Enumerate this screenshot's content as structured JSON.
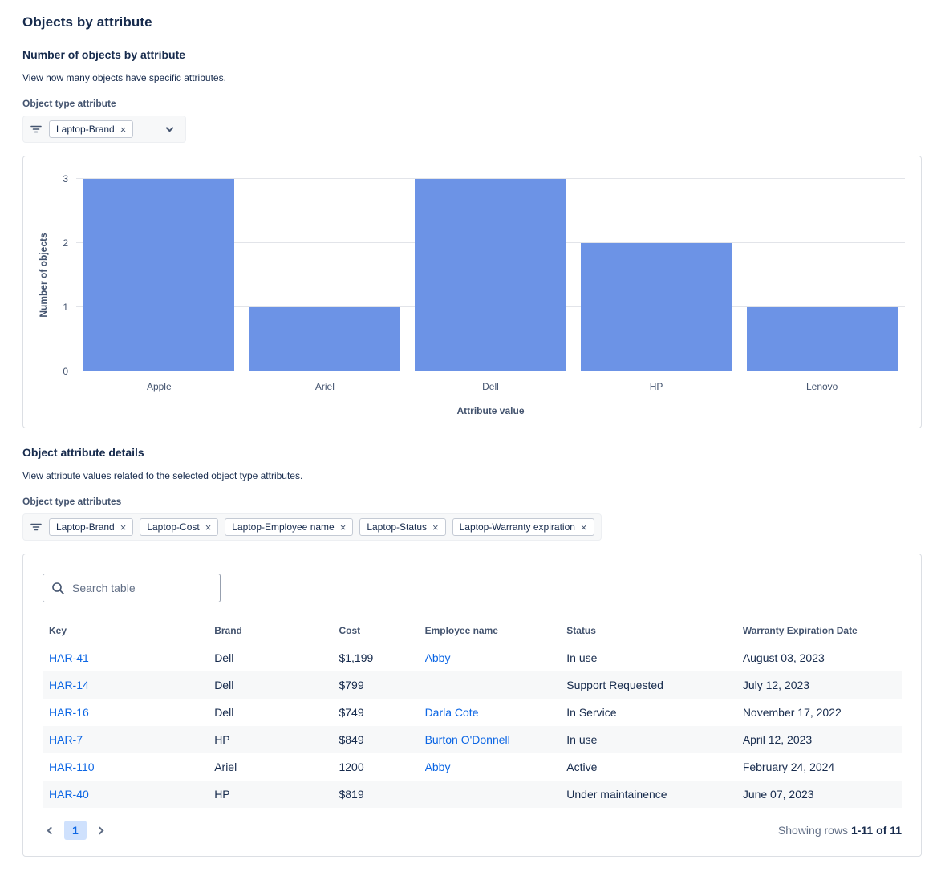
{
  "page": {
    "title": "Objects by attribute"
  },
  "objects_by_attribute": {
    "heading": "Number of objects by attribute",
    "description": "View how many objects have specific attributes.",
    "filter_label": "Object type attribute",
    "filter_tags": [
      "Laptop-Brand"
    ]
  },
  "chart_data": {
    "type": "bar",
    "categories": [
      "Apple",
      "Ariel",
      "Dell",
      "HP",
      "Lenovo"
    ],
    "values": [
      3,
      1,
      3,
      2,
      1
    ],
    "title": "",
    "xlabel": "Attribute value",
    "ylabel": "Number of objects",
    "yticks": [
      0,
      1,
      2,
      3
    ],
    "ylim": [
      0,
      3
    ],
    "grid": true,
    "legend": false,
    "bar_color": "#6C93E6"
  },
  "attribute_details": {
    "heading": "Object attribute details",
    "description": "View attribute values related to the selected object type attributes.",
    "filter_label": "Object type attributes",
    "filter_tags": [
      "Laptop-Brand",
      "Laptop-Cost",
      "Laptop-Employee name",
      "Laptop-Status",
      "Laptop-Warranty expiration"
    ]
  },
  "table": {
    "search_placeholder": "Search table",
    "columns": [
      "Key",
      "Brand",
      "Cost",
      "Employee name",
      "Status",
      "Warranty Expiration Date"
    ],
    "rows": [
      {
        "key": "HAR-41",
        "brand": "Dell",
        "cost": "$1,199",
        "employee_name": "Abby",
        "status": "In use",
        "warranty_expiration_date": "August 03, 2023"
      },
      {
        "key": "HAR-14",
        "brand": "Dell",
        "cost": "$799",
        "employee_name": "",
        "status": "Support Requested",
        "warranty_expiration_date": "July 12, 2023"
      },
      {
        "key": "HAR-16",
        "brand": "Dell",
        "cost": "$749",
        "employee_name": "Darla Cote",
        "status": "In Service",
        "warranty_expiration_date": "November 17, 2022"
      },
      {
        "key": "HAR-7",
        "brand": "HP",
        "cost": "$849",
        "employee_name": "Burton O'Donnell",
        "status": "In use",
        "warranty_expiration_date": "April 12, 2023"
      },
      {
        "key": "HAR-110",
        "brand": "Ariel",
        "cost": "1200",
        "employee_name": "Abby",
        "status": "Active",
        "warranty_expiration_date": "February 24, 2024"
      },
      {
        "key": "HAR-40",
        "brand": "HP",
        "cost": "$819",
        "employee_name": "",
        "status": "Under maintainence",
        "warranty_expiration_date": "June 07, 2023"
      }
    ],
    "pagination": {
      "current_page": "1",
      "summary_label": "Showing rows",
      "summary_range": "1-11 of 11"
    }
  }
}
